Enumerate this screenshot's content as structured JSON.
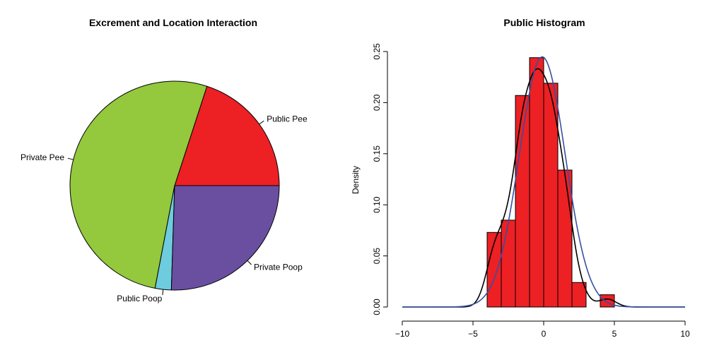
{
  "chart_data": [
    {
      "type": "pie",
      "title": "Excrement and Location Interaction",
      "start_angle_deg": 0,
      "direction": "counterclockwise",
      "slices": [
        {
          "label": "Public Pee",
          "value": 0.2,
          "color": "#ED2024"
        },
        {
          "label": "Private Pee",
          "value": 0.52,
          "color": "#94C83D"
        },
        {
          "label": "Public Poop",
          "value": 0.025,
          "color": "#6DCCDD"
        },
        {
          "label": "Private Poop",
          "value": 0.255,
          "color": "#6A4FA1"
        }
      ]
    },
    {
      "type": "histogram",
      "title": "Public Histogram",
      "xlabel": "",
      "ylabel": "Density",
      "xlim": [
        -10,
        10
      ],
      "ylim": [
        0,
        0.25
      ],
      "xticks": [
        -10,
        -5,
        0,
        5,
        10
      ],
      "yticks": [
        0.0,
        0.05,
        0.1,
        0.15,
        0.2,
        0.25
      ],
      "bar_color": "#ED2024",
      "bins": [
        {
          "left": -4,
          "right": -3,
          "density": 0.073
        },
        {
          "left": -3,
          "right": -2,
          "density": 0.085
        },
        {
          "left": -2,
          "right": -1,
          "density": 0.207
        },
        {
          "left": -1,
          "right": 0,
          "density": 0.244
        },
        {
          "left": 0,
          "right": 1,
          "density": 0.219
        },
        {
          "left": 1,
          "right": 2,
          "density": 0.134
        },
        {
          "left": 2,
          "right": 3,
          "density": 0.024
        },
        {
          "left": 3,
          "right": 4,
          "density": 0.0
        },
        {
          "left": 4,
          "right": 5,
          "density": 0.012
        }
      ],
      "curves": [
        {
          "kind": "kernel-density",
          "color": "#000000"
        },
        {
          "kind": "normal-density",
          "color": "#3A4EA0",
          "mean": -0.1,
          "sd": 1.63
        }
      ]
    }
  ]
}
